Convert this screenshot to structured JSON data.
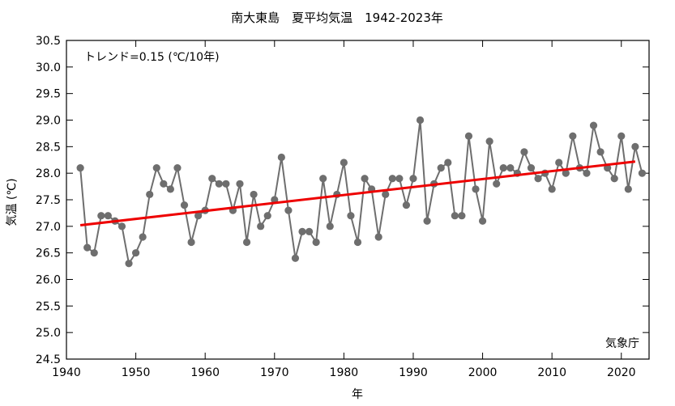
{
  "chart_data": {
    "type": "line",
    "title": "南大東島　夏平均気温　1942-2023年",
    "xlabel": "年",
    "ylabel": "気温 (℃)",
    "annotation": "トレンド=0.15 (℃/10年)",
    "source_label": "気象庁",
    "xlim": [
      1940,
      2024
    ],
    "ylim": [
      24.5,
      30.5
    ],
    "xticks": [
      1940,
      1950,
      1960,
      1970,
      1980,
      1990,
      2000,
      2010,
      2020
    ],
    "yticks": [
      24.5,
      25.0,
      25.5,
      26.0,
      26.5,
      27.0,
      27.5,
      28.0,
      28.5,
      29.0,
      29.5,
      30.0,
      30.5
    ],
    "grid": false,
    "colors": {
      "series": "#6e6e6e",
      "trend": "#ee0000"
    },
    "series": [
      {
        "x": [
          1942,
          1943,
          1944,
          1945,
          1946,
          1947,
          1948,
          1949,
          1950,
          1951,
          1952,
          1953,
          1954,
          1955,
          1956,
          1957,
          1958,
          1959,
          1960,
          1961,
          1962,
          1963,
          1964,
          1965,
          1966,
          1967,
          1968,
          1969,
          1970,
          1971,
          1972,
          1973,
          1974,
          1975,
          1976,
          1977,
          1978,
          1979,
          1980,
          1981,
          1982,
          1983,
          1984,
          1985,
          1986,
          1987,
          1988,
          1989,
          1990,
          1991,
          1992,
          1993,
          1994,
          1995,
          1996,
          1997,
          1998,
          1999,
          2000,
          2001,
          2002,
          2003,
          2004,
          2005,
          2006,
          2007,
          2008,
          2009,
          2010,
          2011,
          2012,
          2013,
          2014,
          2015,
          2016,
          2017,
          2018,
          2019,
          2020,
          2021,
          2022,
          2023
        ],
        "values": [
          28.1,
          26.6,
          26.5,
          27.2,
          27.2,
          27.1,
          27.0,
          26.3,
          26.5,
          26.8,
          27.6,
          28.1,
          27.8,
          27.7,
          28.1,
          27.4,
          26.7,
          27.2,
          27.3,
          27.9,
          27.8,
          27.8,
          27.3,
          27.8,
          26.7,
          27.6,
          27.0,
          27.2,
          27.5,
          28.3,
          27.3,
          26.4,
          26.9,
          26.9,
          26.7,
          27.9,
          27.0,
          27.6,
          28.2,
          27.2,
          26.7,
          27.9,
          27.7,
          26.8,
          27.6,
          27.9,
          27.9,
          27.4,
          27.9,
          29.0,
          27.1,
          27.8,
          28.1,
          28.2,
          27.2,
          27.2,
          28.7,
          27.7,
          27.1,
          28.6,
          27.8,
          28.1,
          28.1,
          28.0,
          28.4,
          28.1,
          27.9,
          28.0,
          27.7,
          28.2,
          28.0,
          28.7,
          28.1,
          28.0,
          28.9,
          28.4,
          28.1,
          27.9,
          28.7,
          27.7,
          28.5,
          28.0
        ]
      }
    ],
    "trend": {
      "x": [
        1942,
        2022
      ],
      "y": [
        27.02,
        28.22
      ]
    }
  }
}
